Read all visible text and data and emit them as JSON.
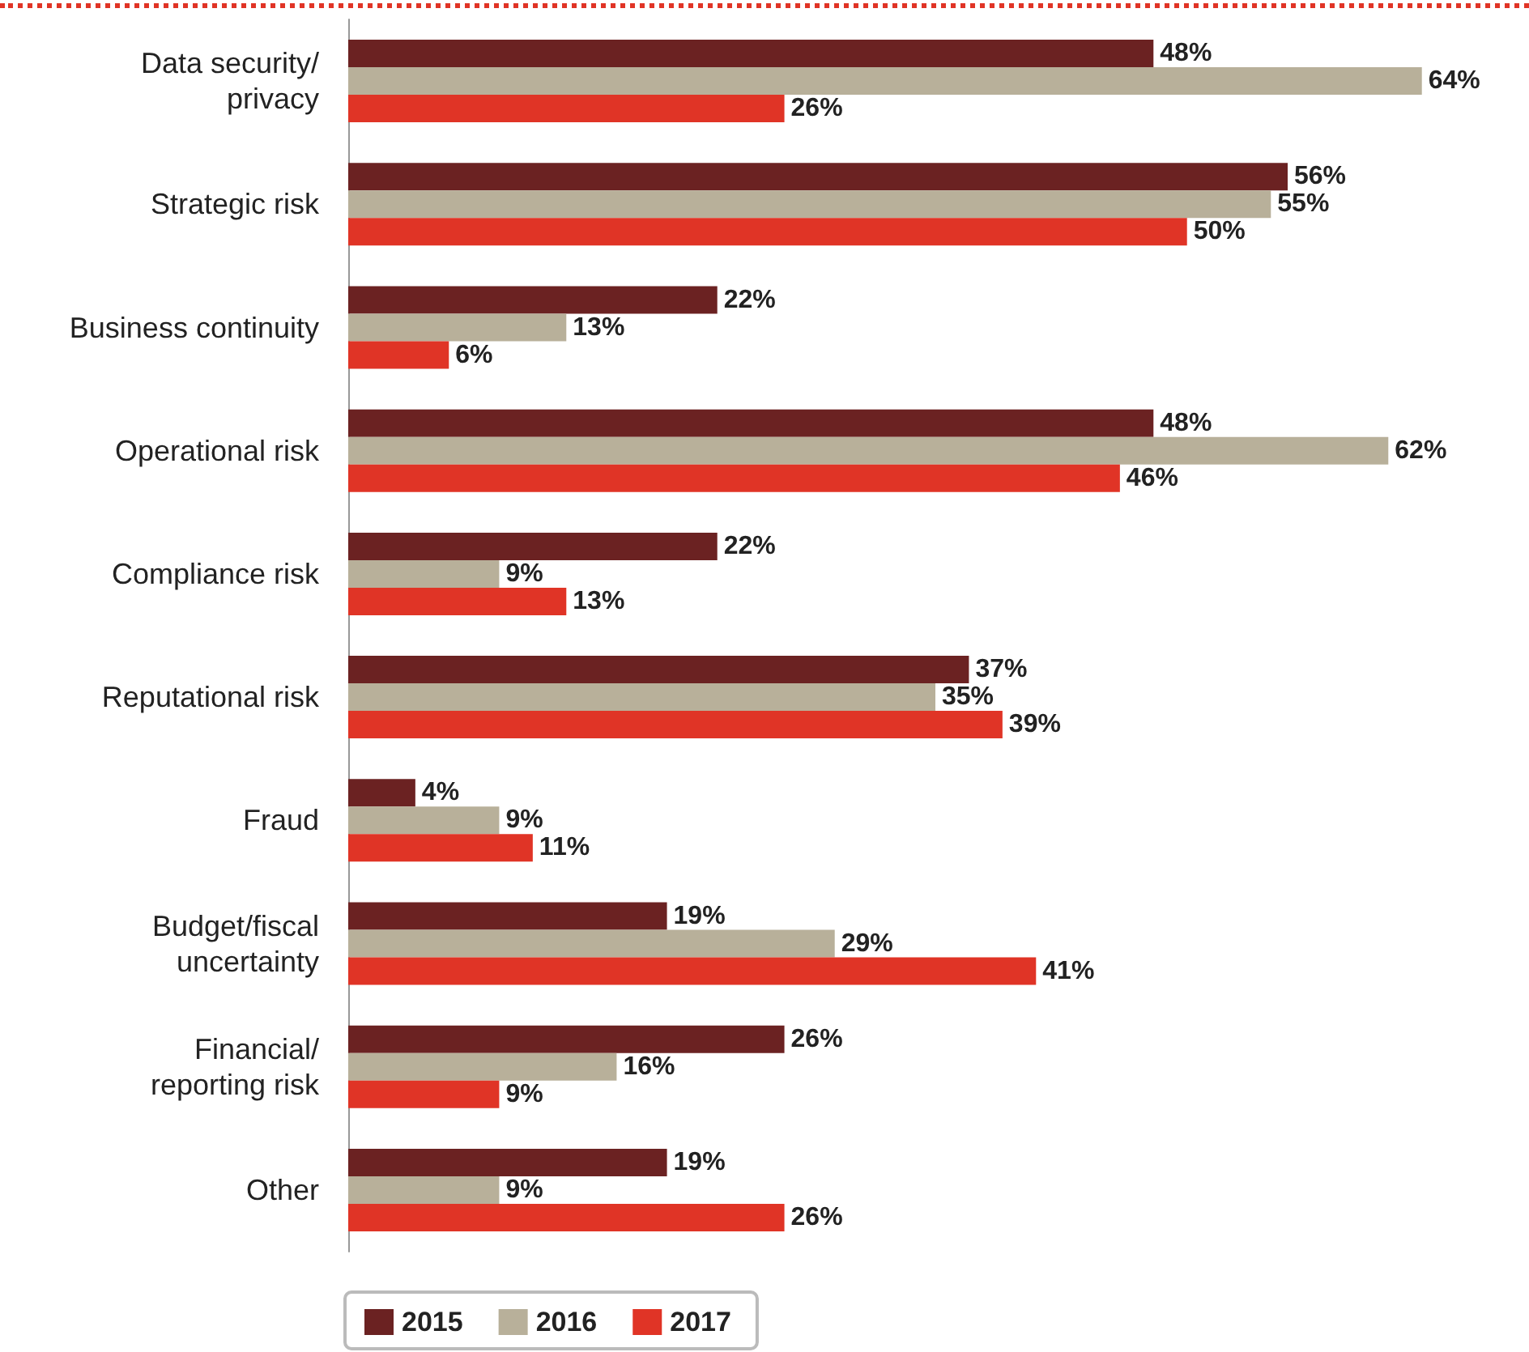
{
  "chart_data": {
    "type": "bar",
    "orientation": "horizontal",
    "categories": [
      "Data security/\nprivacy",
      "Strategic risk",
      "Business continuity",
      "Operational risk",
      "Compliance risk",
      "Reputational risk",
      "Fraud",
      "Budget/fiscal\nuncertainty",
      "Financial/\nreporting risk",
      "Other"
    ],
    "series": [
      {
        "name": "2015",
        "color": "#6b2222",
        "values": [
          48,
          56,
          22,
          48,
          22,
          37,
          4,
          19,
          26,
          19
        ],
        "value_labels": [
          "48%",
          "56%",
          "22%",
          "48%",
          "22%",
          "37%",
          "4%",
          "19%",
          "26%",
          "19%"
        ]
      },
      {
        "name": "2016",
        "color": "#b8b09a",
        "values": [
          64,
          55,
          13,
          62,
          9,
          35,
          9,
          29,
          16,
          9
        ],
        "value_labels": [
          "64%",
          "55%",
          "13%",
          "62%",
          "9%",
          "35%",
          "9%",
          "29%",
          "16%",
          "9%"
        ]
      },
      {
        "name": "2017",
        "color": "#e03426",
        "values": [
          26,
          50,
          6,
          46,
          13,
          39,
          11,
          41,
          9,
          26
        ],
        "value_labels": [
          "26%",
          "50%",
          "6%",
          "46%",
          "13%",
          "39%",
          "11%",
          "41%",
          "9%",
          "26%"
        ]
      }
    ],
    "xlim": [
      0,
      70
    ],
    "tick_labels": "y",
    "grid": false,
    "legend": "bottom"
  }
}
